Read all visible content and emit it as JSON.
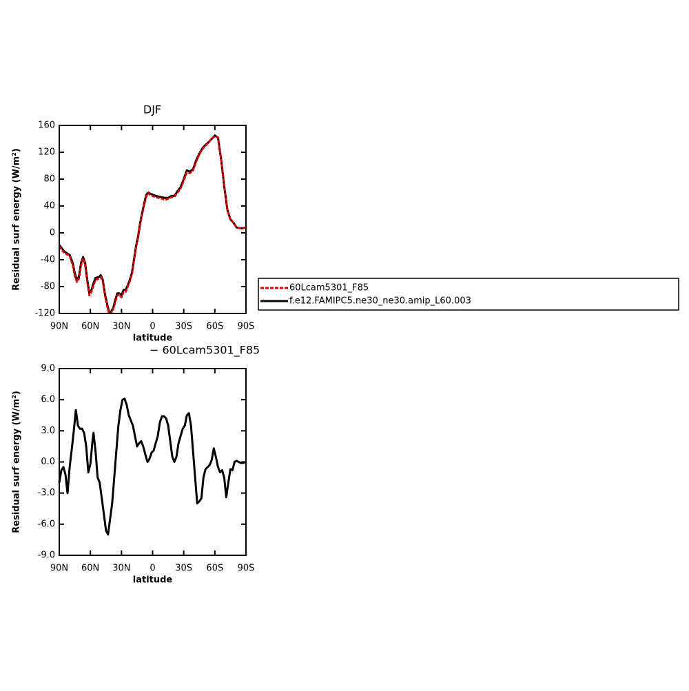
{
  "chart_data": [
    {
      "type": "line",
      "title": "DJF",
      "xlabel": "latitude",
      "ylabel": "Residual surf energy (W/m²)",
      "x": [
        90,
        85,
        80,
        77,
        75,
        73,
        71,
        69,
        67,
        65,
        63,
        61,
        59,
        57,
        55,
        52,
        50,
        48,
        46,
        44,
        42,
        40,
        38,
        36,
        34,
        32,
        30,
        28,
        26,
        24,
        22,
        20,
        18,
        16,
        14,
        12,
        10,
        8,
        6,
        4,
        2,
        0,
        -3,
        -6,
        -9,
        -12,
        -15,
        -18,
        -21,
        -24,
        -27,
        -30,
        -33,
        -36,
        -39,
        -42,
        -45,
        -48,
        -51,
        -54,
        -57,
        -60,
        -63,
        -66,
        -69,
        -72,
        -75,
        -78,
        -81,
        -84,
        -87,
        -90
      ],
      "series": [
        {
          "name": "60Lcam5301_F85",
          "color": "#e00000",
          "dashed": true,
          "values": [
            -20,
            -30,
            -34,
            -48,
            -64,
            -73,
            -68,
            -48,
            -38,
            -48,
            -73,
            -93,
            -88,
            -78,
            -70,
            -68,
            -66,
            -72,
            -92,
            -108,
            -120,
            -119,
            -114,
            -103,
            -93,
            -92,
            -96,
            -88,
            -88,
            -80,
            -72,
            -62,
            -42,
            -22,
            -7,
            13,
            28,
            43,
            55,
            59,
            56,
            55,
            53,
            52,
            51,
            49,
            51,
            53,
            54,
            60,
            66,
            78,
            90,
            89,
            93,
            106,
            117,
            125,
            130,
            135,
            140,
            144,
            142,
            110,
            70,
            35,
            20,
            15,
            8,
            7,
            7,
            8
          ]
        },
        {
          "name": "f.e12.FAMIPC5.ne30_ne30.amip_L60.003",
          "color": "#000000",
          "dashed": false,
          "values": [
            -18,
            -28,
            -33,
            -45,
            -60,
            -70,
            -65,
            -45,
            -36,
            -45,
            -70,
            -90,
            -85,
            -75,
            -67,
            -66,
            -63,
            -70,
            -90,
            -105,
            -118,
            -117,
            -112,
            -100,
            -90,
            -90,
            -93,
            -85,
            -85,
            -78,
            -70,
            -60,
            -40,
            -20,
            -5,
            15,
            30,
            45,
            57,
            60,
            58,
            57,
            55,
            54,
            53,
            52,
            52,
            55,
            55,
            62,
            68,
            80,
            93,
            91,
            95,
            108,
            118,
            126,
            131,
            135,
            140,
            145,
            142,
            110,
            70,
            35,
            20,
            15,
            8,
            7,
            7,
            8
          ]
        }
      ],
      "xlim": [
        90,
        -90
      ],
      "xticks": [
        {
          "value": 90,
          "label": "90N"
        },
        {
          "value": 60,
          "label": "60N"
        },
        {
          "value": 30,
          "label": "30N"
        },
        0,
        {
          "value": -30,
          "label": "30S"
        },
        {
          "value": -60,
          "label": "60S"
        },
        {
          "value": -90,
          "label": "90S"
        }
      ],
      "ylim": [
        -120,
        160
      ],
      "yticks": [
        160,
        120,
        80,
        40,
        0,
        -40,
        -80,
        -120
      ],
      "legend": "right"
    },
    {
      "type": "line",
      "title": "− 60Lcam5301_F85",
      "xlabel": "latitude",
      "ylabel": "Residual surf energy (W/m²)",
      "x": [
        90,
        88,
        86,
        84,
        82,
        80,
        78,
        76,
        74,
        72,
        70,
        68,
        66,
        64,
        62,
        60,
        58,
        57,
        55,
        53,
        51,
        49,
        47,
        45,
        43,
        41,
        39,
        37,
        35,
        33,
        31,
        29,
        27,
        25,
        23,
        21,
        19,
        17,
        15,
        13,
        11,
        9,
        7,
        5,
        3,
        1,
        -1,
        -3,
        -5,
        -7,
        -9,
        -11,
        -13,
        -15,
        -17,
        -19,
        -21,
        -23,
        -25,
        -27,
        -29,
        -31,
        -33,
        -35,
        -37,
        -39,
        -41,
        -43,
        -45,
        -47,
        -49,
        -51,
        -53,
        -55,
        -57,
        -59,
        -61,
        -63,
        -65,
        -67,
        -69,
        -71,
        -73,
        -75,
        -77,
        -79,
        -81,
        -83,
        -85,
        -87,
        -90
      ],
      "values": [
        -2.0,
        -0.8,
        -0.5,
        -1.2,
        -3.0,
        -0.5,
        1.2,
        3.0,
        5.0,
        3.5,
        3.2,
        3.2,
        2.8,
        1.5,
        -1.0,
        -0.2,
        2.0,
        2.8,
        1.0,
        -1.5,
        -2.0,
        -3.5,
        -5.0,
        -6.6,
        -7.0,
        -5.5,
        -4.0,
        -1.5,
        1.0,
        3.5,
        5.0,
        6.0,
        6.1,
        5.5,
        4.5,
        4.0,
        3.5,
        2.5,
        1.5,
        1.8,
        2.0,
        1.5,
        0.7,
        0.0,
        0.3,
        0.9,
        1.1,
        1.8,
        2.5,
        3.8,
        4.4,
        4.4,
        4.2,
        3.5,
        2.0,
        0.5,
        0.0,
        0.5,
        1.8,
        2.5,
        3.2,
        3.5,
        4.5,
        4.7,
        3.5,
        1.0,
        -1.5,
        -4.0,
        -3.8,
        -3.5,
        -1.5,
        -0.7,
        -0.5,
        -0.3,
        0.2,
        1.3,
        0.5,
        -0.5,
        -1.0,
        -0.8,
        -1.5,
        -3.4,
        -2.0,
        -0.7,
        -0.8,
        0.0,
        0.1,
        0.0,
        -0.1,
        -0.1,
        0.0
      ],
      "color": "#000000",
      "xlim": [
        90,
        -90
      ],
      "xticks": [
        {
          "value": 90,
          "label": "90N"
        },
        {
          "value": 60,
          "label": "60N"
        },
        {
          "value": 30,
          "label": "30N"
        },
        0,
        {
          "value": -30,
          "label": "30S"
        },
        {
          "value": -60,
          "label": "60S"
        },
        {
          "value": -90,
          "label": "90S"
        }
      ],
      "ylim": [
        -9,
        9
      ],
      "yticks": [
        {
          "value": 9,
          "label": "9.0"
        },
        {
          "value": 6,
          "label": "6.0"
        },
        {
          "value": 3,
          "label": "3.0"
        },
        {
          "value": 0,
          "label": "0.0"
        },
        {
          "value": -3,
          "label": "-3.0"
        },
        {
          "value": -6,
          "label": "-6.0"
        },
        {
          "value": -9,
          "label": "-9.0"
        }
      ]
    }
  ]
}
